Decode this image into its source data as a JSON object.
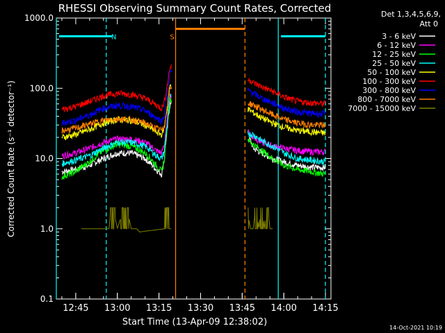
{
  "colors": {
    "background": "#000000",
    "foreground": "#ffffff"
  },
  "chart_data": {
    "type": "line",
    "title": "RHESSI Observing Summary Count Rates, Corrected",
    "xlabel": "Start Time (13-Apr-09 12:38:02)",
    "ylabel": "Corrected Count Rate (s⁻¹ detector⁻¹)",
    "y_scale": "log",
    "xlim": [
      "12:38",
      "14:17"
    ],
    "ylim": [
      0.1,
      1000
    ],
    "x_ticks": [
      "12:45",
      "13:00",
      "13:15",
      "13:30",
      "13:45",
      "14:00",
      "14:15"
    ],
    "y_ticks": [
      "0.1",
      "1.0",
      "10.0",
      "100.0",
      "1000.0"
    ],
    "legend": {
      "position": "top-right",
      "header": [
        "Det 1,3,4,5,6,9,",
        "Att 0"
      ]
    },
    "timestamp": "14-Oct-2021 10:19",
    "annotations": [
      {
        "text": "N",
        "color": "#00ffff",
        "x": "12:58"
      },
      {
        "text": "S",
        "color": "#ff8000",
        "x": "13:19"
      }
    ],
    "bars": [
      {
        "color": "#00ffff",
        "y": 550,
        "x_ranges": [
          [
            "12:39",
            "12:58"
          ],
          [
            "13:59",
            "14:15"
          ]
        ]
      },
      {
        "color": "#ff8000",
        "y": 700,
        "x_ranges": [
          [
            "13:21",
            "13:46"
          ]
        ]
      }
    ],
    "vertical_lines": [
      {
        "x": "12:38",
        "color": "#00ffff",
        "style": "solid"
      },
      {
        "x": "12:56",
        "color": "#00ffff",
        "style": "dashed"
      },
      {
        "x": "13:21",
        "color": "#ff8000",
        "style": "solid"
      },
      {
        "x": "13:46",
        "color": "#ff8000",
        "style": "dashed"
      },
      {
        "x": "13:58",
        "color": "#00ffff",
        "style": "solid"
      },
      {
        "x": "14:15",
        "color": "#00ffff",
        "style": "dashed"
      }
    ],
    "gaps": [
      [
        "13:21",
        "13:47"
      ]
    ],
    "series": [
      {
        "name": "3 - 6 keV",
        "color": "#ffffff",
        "x": [
          "12:40",
          "12:45",
          "12:50",
          "12:55",
          "13:00",
          "13:05",
          "13:10",
          "13:14",
          "13:16",
          "13:17",
          "13:18",
          "13:19",
          "13:48",
          "13:49",
          "13:52",
          "13:56",
          "14:00",
          "14:05",
          "14:10",
          "14:15"
        ],
        "y": [
          6.5,
          7,
          8,
          10,
          12,
          12,
          10,
          7,
          6,
          10,
          25,
          60,
          18,
          14,
          12,
          10,
          9,
          8,
          7.5,
          7.5
        ]
      },
      {
        "name": "6 - 12 keV",
        "color": "#ff00ff",
        "x": [
          "12:40",
          "12:45",
          "12:50",
          "12:55",
          "13:00",
          "13:05",
          "13:10",
          "13:14",
          "13:16",
          "13:17",
          "13:18",
          "13:19",
          "13:48",
          "13:49",
          "13:52",
          "13:56",
          "14:00",
          "14:05",
          "14:10",
          "14:15"
        ],
        "y": [
          11,
          12,
          14,
          17,
          19,
          19,
          17,
          13,
          12,
          16,
          35,
          80,
          22,
          20,
          17,
          15,
          14,
          13,
          12.5,
          12.5
        ]
      },
      {
        "name": "12 - 25 keV",
        "color": "#00ff00",
        "x": [
          "12:40",
          "12:45",
          "12:50",
          "12:55",
          "13:00",
          "13:05",
          "13:10",
          "13:14",
          "13:16",
          "13:17",
          "13:18",
          "13:19",
          "13:48",
          "13:49",
          "13:52",
          "13:56",
          "14:00",
          "14:05",
          "14:10",
          "14:15"
        ],
        "y": [
          5.5,
          6.5,
          9,
          13,
          16,
          15,
          12,
          8,
          6.5,
          10,
          28,
          70,
          17,
          16,
          13,
          10,
          8,
          7,
          6.5,
          6
        ]
      },
      {
        "name": "25 - 50 keV",
        "color": "#00ffff",
        "x": [
          "12:40",
          "12:45",
          "12:50",
          "12:55",
          "13:00",
          "13:05",
          "13:10",
          "13:14",
          "13:16",
          "13:17",
          "13:18",
          "13:19",
          "13:48",
          "13:49",
          "13:52",
          "13:56",
          "14:00",
          "14:05",
          "14:10",
          "14:15"
        ],
        "y": [
          8.5,
          9.5,
          11,
          14,
          17,
          17,
          15,
          11,
          10,
          13,
          30,
          75,
          22,
          22,
          18,
          15,
          12,
          10,
          9.5,
          9
        ]
      },
      {
        "name": "50 - 100 keV",
        "color": "#ffff00",
        "x": [
          "12:40",
          "12:45",
          "12:50",
          "12:55",
          "13:00",
          "13:05",
          "13:10",
          "13:14",
          "13:16",
          "13:17",
          "13:18",
          "13:19",
          "13:48",
          "13:49",
          "13:52",
          "13:56",
          "14:00",
          "14:05",
          "14:10",
          "14:15"
        ],
        "y": [
          20,
          22,
          26,
          32,
          36,
          35,
          30,
          24,
          22,
          28,
          55,
          110,
          48,
          45,
          38,
          32,
          28,
          25,
          24,
          23
        ]
      },
      {
        "name": "100 - 300 keV",
        "color": "#ff0000",
        "x": [
          "12:40",
          "12:45",
          "12:50",
          "12:55",
          "13:00",
          "13:05",
          "13:10",
          "13:14",
          "13:16",
          "13:17",
          "13:18",
          "13:19",
          "13:48",
          "13:49",
          "13:52",
          "13:56",
          "14:00",
          "14:05",
          "14:10",
          "14:15"
        ],
        "y": [
          50,
          55,
          65,
          78,
          85,
          82,
          72,
          58,
          52,
          65,
          110,
          200,
          130,
          120,
          105,
          90,
          75,
          65,
          62,
          60
        ]
      },
      {
        "name": "300 - 800 keV",
        "color": "#0000ff",
        "x": [
          "12:40",
          "12:45",
          "12:50",
          "12:55",
          "13:00",
          "13:05",
          "13:10",
          "13:14",
          "13:16",
          "13:17",
          "13:18",
          "13:19",
          "13:48",
          "13:49",
          "13:52",
          "13:56",
          "14:00",
          "14:05",
          "14:10",
          "14:15"
        ],
        "y": [
          32,
          35,
          42,
          52,
          57,
          55,
          48,
          38,
          34,
          42,
          85,
          170,
          90,
          85,
          72,
          62,
          52,
          46,
          44,
          43
        ]
      },
      {
        "name": "800 - 7000 keV",
        "color": "#ff8000",
        "x": [
          "12:40",
          "12:45",
          "12:50",
          "12:55",
          "13:00",
          "13:05",
          "13:10",
          "13:14",
          "13:16",
          "13:17",
          "13:18",
          "13:19",
          "13:48",
          "13:49",
          "13:52",
          "13:56",
          "14:00",
          "14:05",
          "14:10",
          "14:15"
        ],
        "y": [
          25,
          27,
          31,
          35,
          37,
          36,
          32,
          27,
          25,
          30,
          50,
          100,
          60,
          58,
          50,
          42,
          36,
          32,
          30,
          30
        ]
      },
      {
        "name": "7000 - 15000 keV",
        "color": "#808000",
        "x": [
          "12:47",
          "12:55",
          "12:57",
          "12:58",
          "13:00",
          "13:03",
          "13:05",
          "13:07",
          "13:08",
          "13:17",
          "13:18",
          "13:19",
          "13:48",
          "13:49",
          "13:50",
          "13:51",
          "13:52",
          "13:53",
          "13:54",
          "13:55",
          "13:56"
        ],
        "y": [
          1,
          1,
          1,
          2,
          1,
          2,
          1,
          1,
          0.9,
          1,
          8,
          18,
          1,
          1,
          2,
          1,
          2,
          1,
          2,
          1,
          1
        ]
      }
    ]
  }
}
